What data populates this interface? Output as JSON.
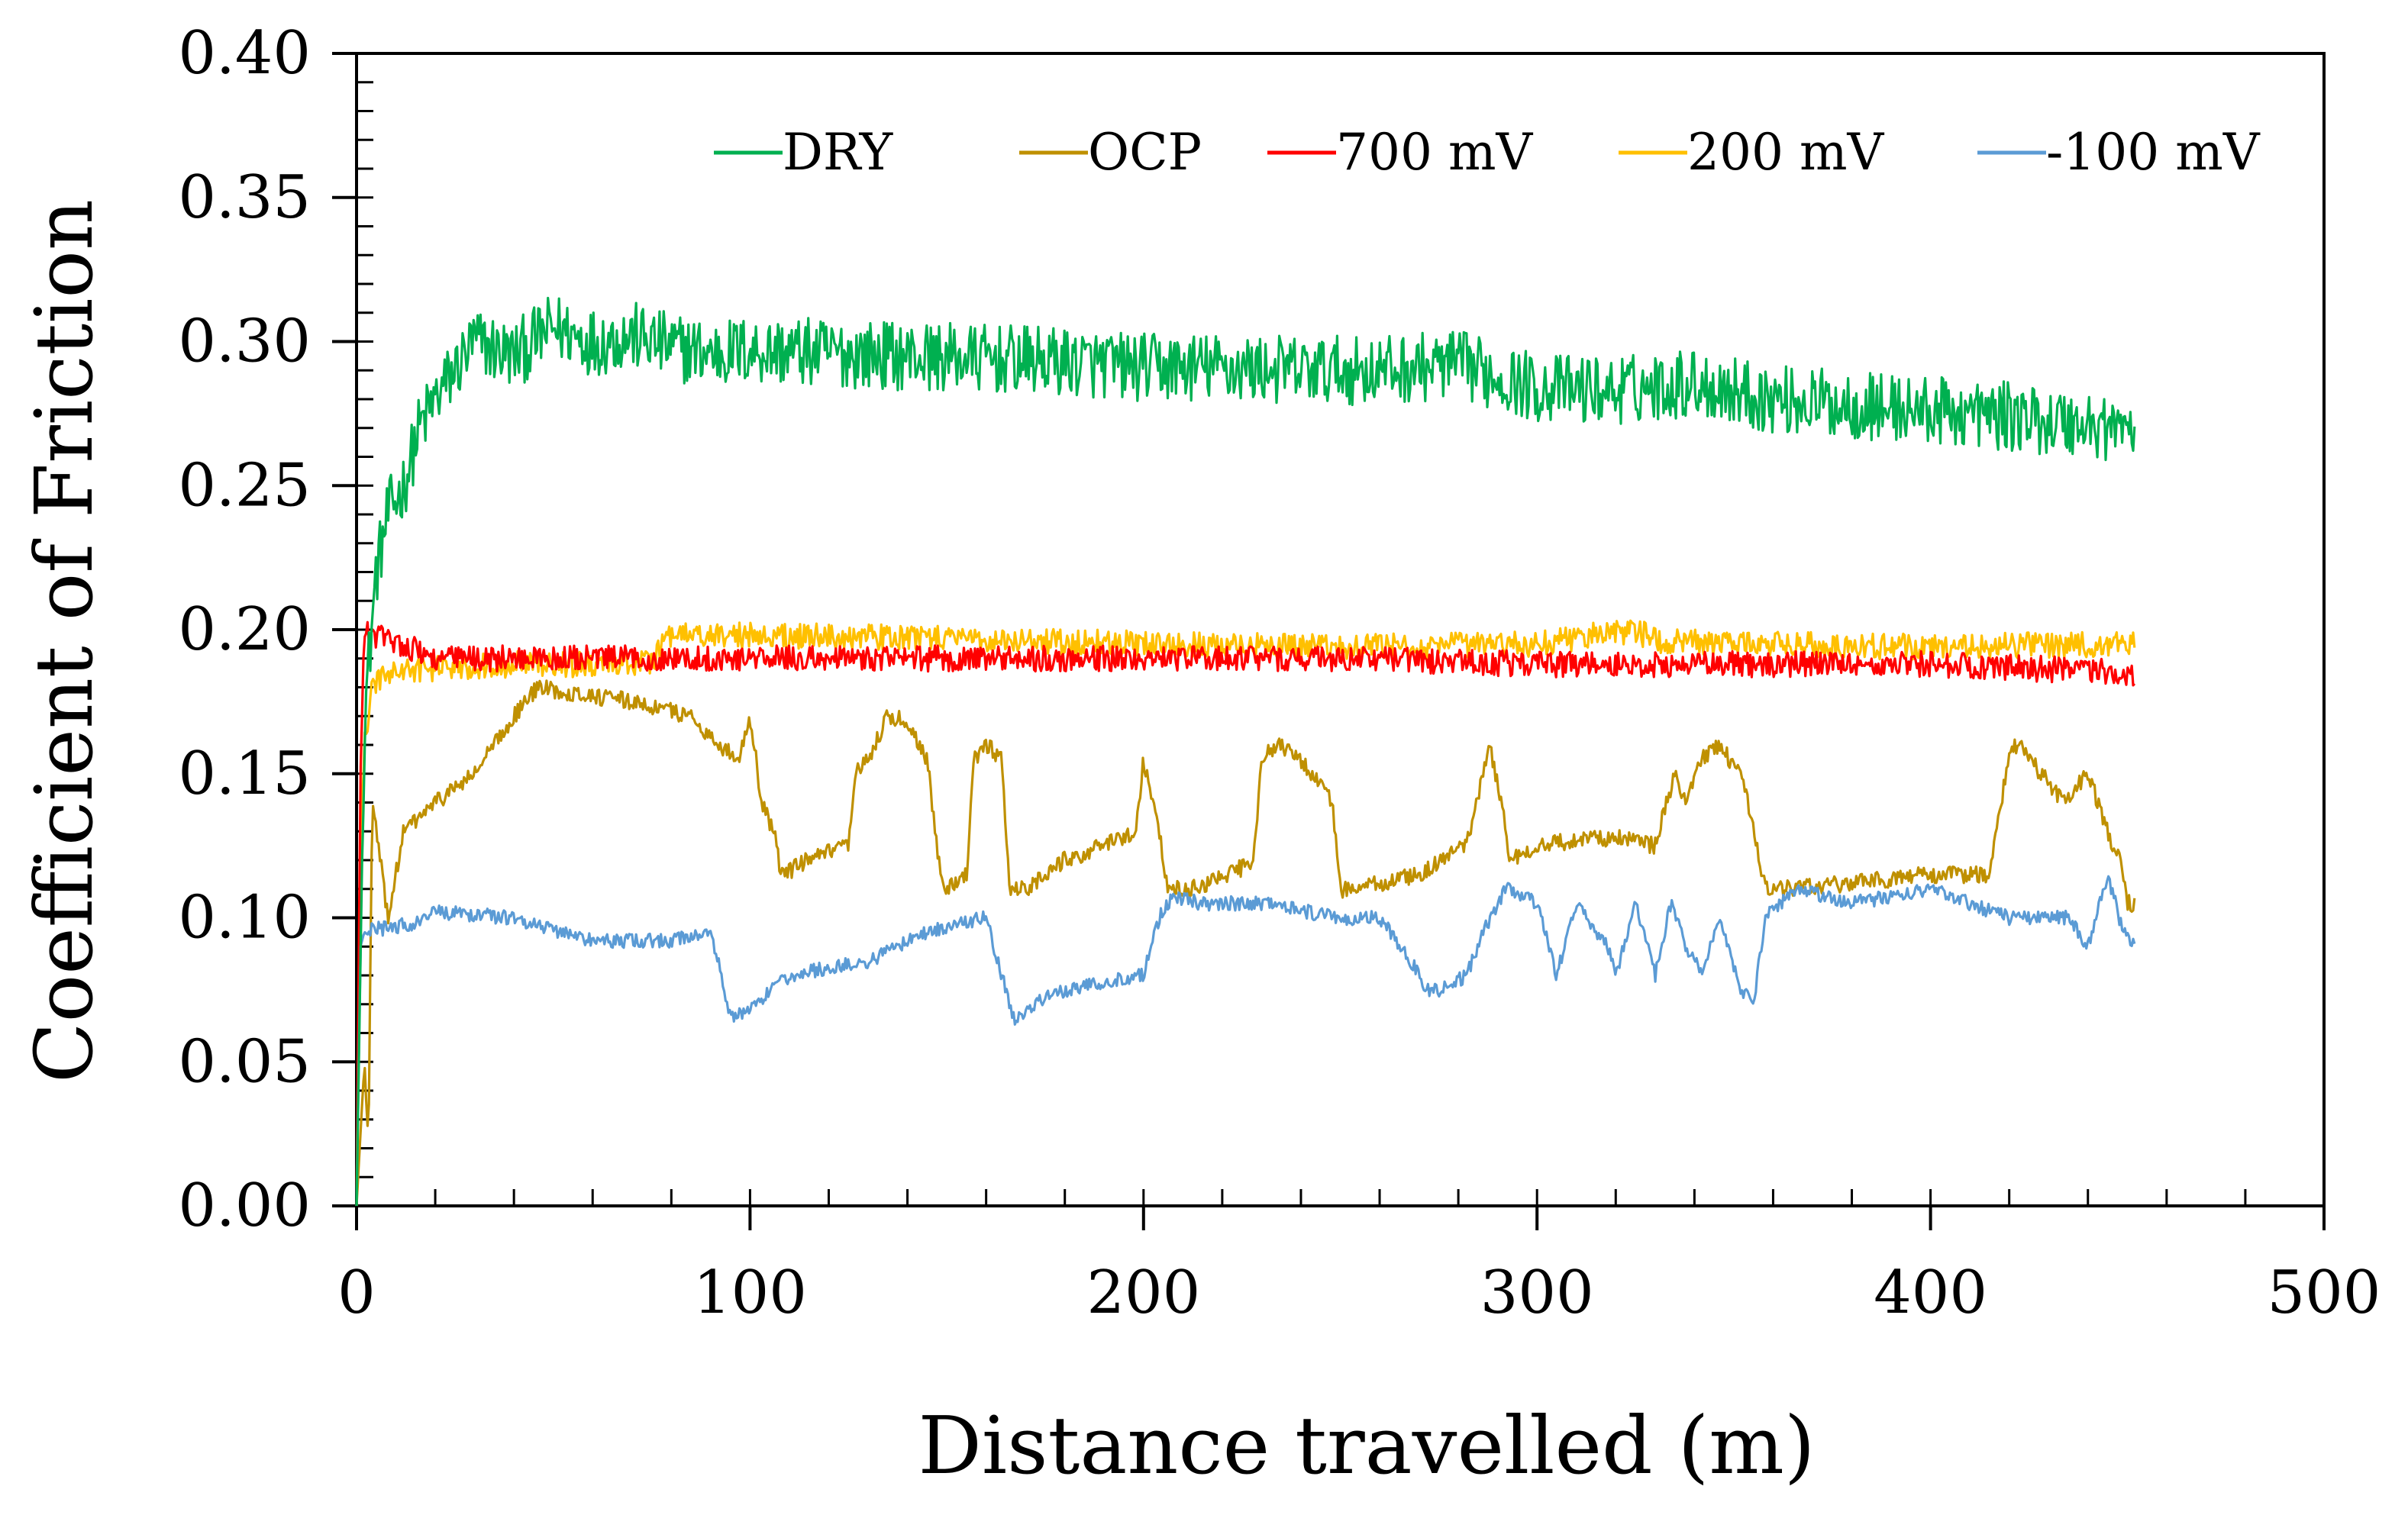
{
  "chart_data": {
    "type": "line",
    "title": "",
    "xlabel": "Distance travelled (m)",
    "ylabel": "Coefficient of Friction",
    "xlim": [
      0,
      500
    ],
    "ylim": [
      0.0,
      0.4
    ],
    "x_ticks": [
      "0",
      "100",
      "200",
      "300",
      "400",
      "500"
    ],
    "y_ticks": [
      "0.00",
      "0.05",
      "0.10",
      "0.15",
      "0.20",
      "0.25",
      "0.30",
      "0.35",
      "0.40"
    ],
    "grid": false,
    "legend_position": "top",
    "series": [
      {
        "name": "DRY",
        "color": "#00b050",
        "noise": 0.012,
        "x": [
          0,
          2,
          5,
          8,
          12,
          16,
          20,
          25,
          30,
          40,
          50,
          60,
          70,
          80,
          90,
          100,
          120,
          140,
          160,
          180,
          200,
          220,
          240,
          260,
          280,
          300,
          320,
          340,
          360,
          380,
          400,
          420,
          440,
          452
        ],
        "y": [
          0.0,
          0.17,
          0.22,
          0.24,
          0.25,
          0.27,
          0.28,
          0.29,
          0.3,
          0.295,
          0.305,
          0.3,
          0.302,
          0.298,
          0.296,
          0.297,
          0.296,
          0.295,
          0.294,
          0.293,
          0.291,
          0.291,
          0.29,
          0.29,
          0.292,
          0.284,
          0.283,
          0.286,
          0.28,
          0.278,
          0.276,
          0.274,
          0.271,
          0.27
        ]
      },
      {
        "name": "OCP",
        "color": "#bf9000",
        "noise": 0.003,
        "x": [
          0,
          2,
          3,
          4,
          6,
          8,
          12,
          20,
          30,
          40,
          46,
          55,
          70,
          85,
          92,
          97,
          100,
          103,
          106,
          108,
          115,
          125,
          127,
          130,
          135,
          140,
          145,
          148,
          150,
          155,
          157,
          160,
          164,
          166,
          170,
          180,
          190,
          198,
          200,
          204,
          206,
          212,
          222,
          228,
          230,
          234,
          240,
          248,
          250,
          254,
          270,
          282,
          288,
          291,
          293,
          300,
          310,
          320,
          330,
          335,
          338,
          342,
          346,
          352,
          355,
          358,
          364,
          380,
          400,
          415,
          420,
          423,
          428,
          434,
          440,
          445,
          448,
          450,
          452
        ],
        "y": [
          0.0,
          0.05,
          0.02,
          0.14,
          0.12,
          0.1,
          0.13,
          0.14,
          0.15,
          0.17,
          0.18,
          0.178,
          0.175,
          0.17,
          0.16,
          0.155,
          0.17,
          0.14,
          0.13,
          0.115,
          0.12,
          0.125,
          0.15,
          0.155,
          0.17,
          0.168,
          0.155,
          0.12,
          0.11,
          0.115,
          0.155,
          0.16,
          0.155,
          0.11,
          0.11,
          0.12,
          0.125,
          0.13,
          0.155,
          0.13,
          0.11,
          0.11,
          0.115,
          0.12,
          0.155,
          0.16,
          0.155,
          0.14,
          0.11,
          0.11,
          0.115,
          0.125,
          0.16,
          0.14,
          0.12,
          0.125,
          0.127,
          0.128,
          0.125,
          0.15,
          0.14,
          0.155,
          0.16,
          0.15,
          0.13,
          0.11,
          0.11,
          0.112,
          0.115,
          0.115,
          0.158,
          0.16,
          0.15,
          0.14,
          0.15,
          0.13,
          0.12,
          0.105,
          0.105
        ]
      },
      {
        "name": "700 mV",
        "color": "#ff0000",
        "noise": 0.0045,
        "x": [
          0,
          1,
          2,
          3,
          5,
          10,
          20,
          40,
          60,
          80,
          100,
          150,
          200,
          250,
          300,
          350,
          400,
          452
        ],
        "y": [
          0.0,
          0.15,
          0.2,
          0.198,
          0.198,
          0.196,
          0.19,
          0.19,
          0.19,
          0.19,
          0.19,
          0.19,
          0.19,
          0.19,
          0.188,
          0.188,
          0.188,
          0.185
        ]
      },
      {
        "name": "200 mV",
        "color": "#ffc000",
        "noise": 0.0045,
        "x": [
          0,
          1,
          2,
          4,
          8,
          15,
          25,
          40,
          60,
          75,
          80,
          100,
          150,
          200,
          250,
          300,
          325,
          330,
          350,
          400,
          452
        ],
        "y": [
          0.0,
          0.13,
          0.16,
          0.18,
          0.185,
          0.186,
          0.187,
          0.188,
          0.188,
          0.189,
          0.198,
          0.198,
          0.197,
          0.195,
          0.194,
          0.195,
          0.2,
          0.196,
          0.195,
          0.194,
          0.195
        ]
      },
      {
        "name": "-100 mV",
        "color": "#5b9bd5",
        "noise": 0.0025,
        "x": [
          0,
          1,
          2,
          5,
          10,
          15,
          20,
          40,
          60,
          80,
          90,
          92,
          95,
          100,
          110,
          130,
          145,
          160,
          167,
          172,
          180,
          200,
          204,
          207,
          215,
          230,
          250,
          260,
          268,
          272,
          276,
          282,
          288,
          292,
          300,
          305,
          310,
          318,
          320,
          325,
          330,
          334,
          338,
          342,
          346,
          352,
          355,
          358,
          366,
          380,
          400,
          420,
          435,
          440,
          445,
          449,
          452
        ],
        "y": [
          0.0,
          0.09,
          0.095,
          0.096,
          0.097,
          0.098,
          0.102,
          0.1,
          0.092,
          0.092,
          0.095,
          0.085,
          0.065,
          0.068,
          0.08,
          0.085,
          0.095,
          0.1,
          0.065,
          0.07,
          0.075,
          0.08,
          0.1,
          0.107,
          0.105,
          0.105,
          0.1,
          0.1,
          0.085,
          0.075,
          0.075,
          0.08,
          0.1,
          0.11,
          0.105,
          0.08,
          0.105,
          0.09,
          0.08,
          0.105,
          0.08,
          0.105,
          0.09,
          0.08,
          0.1,
          0.075,
          0.07,
          0.1,
          0.11,
          0.105,
          0.11,
          0.1,
          0.1,
          0.09,
          0.115,
          0.095,
          0.09
        ]
      }
    ]
  }
}
